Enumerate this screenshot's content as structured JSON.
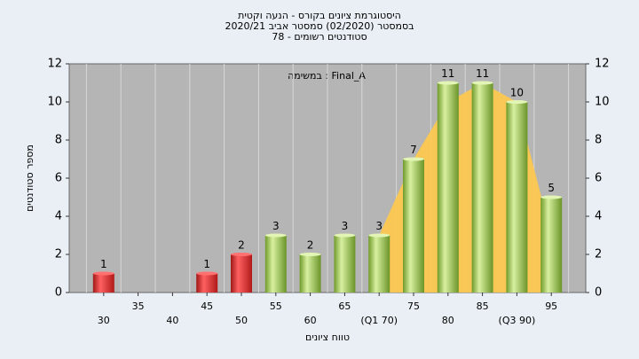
{
  "chart_data": {
    "type": "bar",
    "title": [
      "היסטוגרמת ציונים בקורס - הנעה וקטית",
      "בסמסטר  (02/2020)  סמסטר אביב 2020/21",
      "סטודנטים רשומים - 78"
    ],
    "annotation": "במשימה : Final_A",
    "x_label": "טווח ציונים",
    "y_label": "מספר סטודנטים",
    "categories": [
      "30",
      "35",
      "40",
      "45",
      "50",
      "55",
      "60",
      "65",
      "(Q1 70)",
      "75",
      "80",
      "85",
      "(Q3 90)",
      "95"
    ],
    "values": [
      1,
      0,
      0,
      1,
      2,
      3,
      2,
      3,
      3,
      7,
      11,
      11,
      10,
      5
    ],
    "colors": [
      "red",
      "red",
      "red",
      "red",
      "red",
      "green",
      "green",
      "green",
      "green",
      "green",
      "green",
      "green",
      "green",
      "green"
    ],
    "area": {
      "color": "#ffc94a",
      "values": [
        null,
        null,
        null,
        null,
        null,
        null,
        null,
        null,
        3,
        7,
        10,
        11,
        10,
        3
      ]
    },
    "ylim": [
      0,
      12
    ],
    "yticks": [
      0,
      2,
      4,
      6,
      8,
      10,
      12
    ],
    "y2lim": [
      0,
      12
    ],
    "y2ticks": [
      0,
      2,
      4,
      6,
      8,
      10,
      12
    ]
  }
}
